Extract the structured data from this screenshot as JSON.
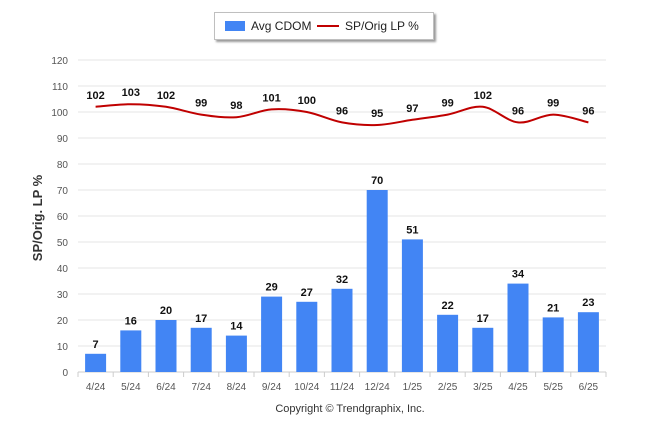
{
  "chart_data": {
    "type": "bar",
    "categories": [
      "4/24",
      "5/24",
      "6/24",
      "7/24",
      "8/24",
      "9/24",
      "10/24",
      "11/24",
      "12/24",
      "1/25",
      "2/25",
      "3/25",
      "4/25",
      "5/25",
      "6/25"
    ],
    "series": [
      {
        "name": "Avg CDOM",
        "type": "bar",
        "color": "#4285f4",
        "values": [
          7,
          16,
          20,
          17,
          14,
          29,
          27,
          32,
          70,
          51,
          22,
          17,
          34,
          21,
          23
        ]
      },
      {
        "name": "SP/Orig LP %",
        "type": "line",
        "color": "#c00000",
        "values": [
          102,
          103,
          102,
          99,
          98,
          101,
          100,
          96,
          95,
          97,
          99,
          102,
          96,
          99,
          96
        ]
      }
    ],
    "ylabel": "SP/Orig. LP %",
    "ylim": [
      0,
      120
    ],
    "yticks": [
      0,
      10,
      20,
      30,
      40,
      50,
      60,
      70,
      80,
      90,
      100,
      110,
      120
    ],
    "grid": true,
    "legend": "top"
  },
  "footer": {
    "copyright": "Copyright © Trendgraphix, Inc."
  }
}
